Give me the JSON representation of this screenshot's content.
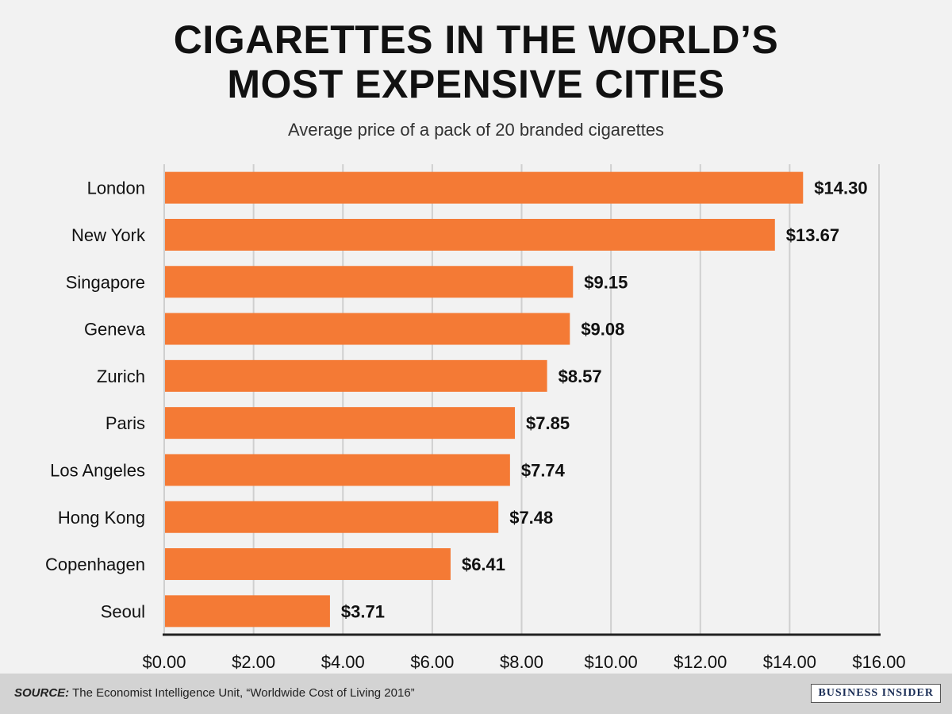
{
  "title_line1": "CIGARETTES IN THE WORLD’S",
  "title_line2": "MOST EXPENSIVE CITIES",
  "subtitle": "Average price of a pack of 20 branded cigarettes",
  "source_label": "SOURCE:",
  "source_text": "The Economist Intelligence Unit, “Worldwide Cost of Living 2016”",
  "brand": "BUSINESS INSIDER",
  "colors": {
    "bar": "#f47a35",
    "background": "#f2f2f2",
    "grid": "#cfcfcf",
    "axis": "#222222",
    "text": "#111111",
    "footer": "#d3d3d3"
  },
  "chart_data": {
    "type": "bar",
    "orientation": "horizontal",
    "title": "CIGARETTES IN THE WORLD’S MOST EXPENSIVE CITIES",
    "subtitle": "Average price of a pack of 20 branded cigarettes",
    "categories": [
      "London",
      "New York",
      "Singapore",
      "Geneva",
      "Zurich",
      "Paris",
      "Los Angeles",
      "Hong Kong",
      "Copenhagen",
      "Seoul"
    ],
    "values": [
      14.3,
      13.67,
      9.15,
      9.08,
      8.57,
      7.85,
      7.74,
      7.48,
      6.41,
      3.71
    ],
    "value_labels": [
      "$14.30",
      "$13.67",
      "$9.15",
      "$9.08",
      "$8.57",
      "$7.85",
      "$7.74",
      "$7.48",
      "$6.41",
      "$3.71"
    ],
    "xlim": [
      0,
      16
    ],
    "xticks": [
      0,
      2,
      4,
      6,
      8,
      10,
      12,
      14,
      16
    ],
    "xtick_labels": [
      "$0.00",
      "$2.00",
      "$4.00",
      "$6.00",
      "$8.00",
      "$10.00",
      "$12.00",
      "$14.00",
      "$16.00"
    ],
    "xlabel": "",
    "ylabel": "",
    "grid": true
  }
}
